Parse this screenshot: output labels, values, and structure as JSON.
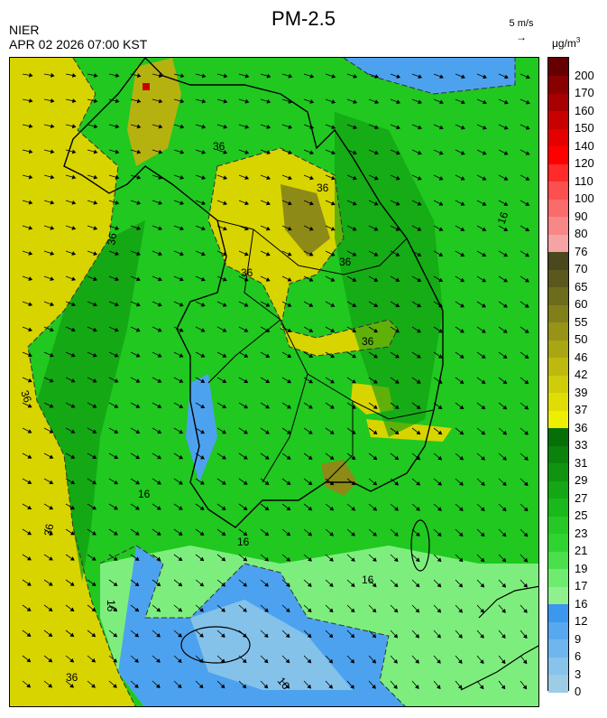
{
  "header": {
    "title": "PM-2.5",
    "agency": "NIER",
    "datetime": "APR 02 2026 07:00 KST",
    "wind_reference": "5 m/s",
    "unit_main": "μg/m",
    "unit_sup": "3"
  },
  "colorbar": {
    "levels": [
      "0",
      "3",
      "6",
      "9",
      "12",
      "16",
      "17",
      "19",
      "21",
      "23",
      "25",
      "27",
      "29",
      "31",
      "33",
      "36",
      "37",
      "39",
      "42",
      "46",
      "50",
      "55",
      "60",
      "65",
      "70",
      "76",
      "80",
      "90",
      "100",
      "110",
      "120",
      "140",
      "150",
      "160",
      "170",
      "200"
    ],
    "colors": [
      "#9ccce6",
      "#87c3ea",
      "#6fb6ee",
      "#58a8ef",
      "#3c97ee",
      "#8ff08e",
      "#6fec6f",
      "#4be04b",
      "#30d430",
      "#25c825",
      "#1bb81b",
      "#15a615",
      "#109410",
      "#0b820b",
      "#076f07",
      "#eeee00",
      "#e0dc05",
      "#cfcc0a",
      "#bdb90f",
      "#aaa613",
      "#969317",
      "#817f1a",
      "#6d6b1c",
      "#5a581d",
      "#4a481d",
      "#f6a3a3",
      "#f88787",
      "#fa6b6b",
      "#fc4f4f",
      "#ff2a2a",
      "#ff0000",
      "#e50000",
      "#c80000",
      "#a80000",
      "#880000",
      "#660000"
    ]
  },
  "map": {
    "contour_labels": [
      "36",
      "36",
      "36",
      "36",
      "36",
      "36",
      "36",
      "36",
      "36",
      "16",
      "16",
      "16",
      "16",
      "16",
      "16"
    ]
  }
}
